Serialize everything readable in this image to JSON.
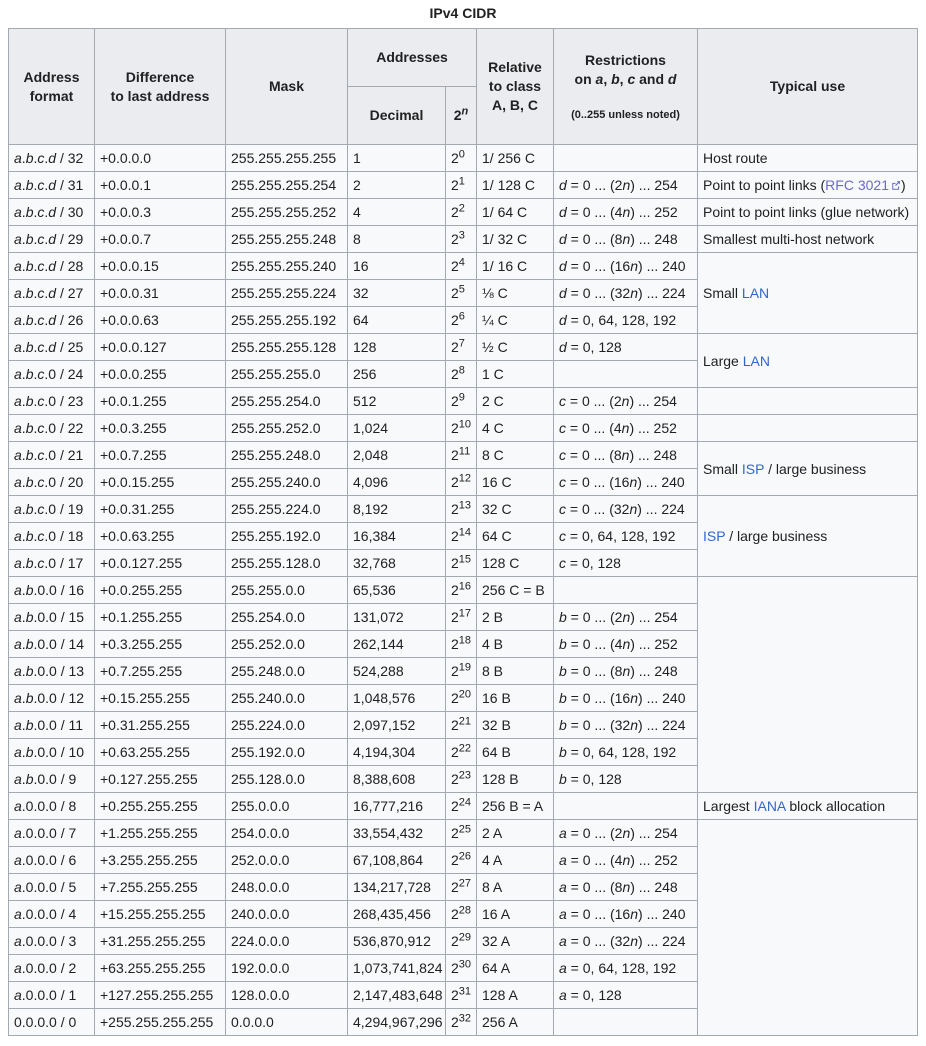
{
  "caption": "IPv4 CIDR",
  "colors": {
    "border": "#a2a9b1",
    "header_bg": "#eaecf0",
    "cell_bg": "#f8f9fa",
    "text": "#202122",
    "link": "#3366cc",
    "visited_link": "#6b6bc8"
  },
  "icons": {
    "external_link": "external-link-icon"
  },
  "header": {
    "address_format": "Address\nformat",
    "difference": "Difference\nto last address",
    "mask": "Mask",
    "addresses": "Addresses",
    "decimal": "Decimal",
    "power_base": "2",
    "power_exp": "n",
    "relative": "Relative\nto class\nA, B, C",
    "restrictions": "Restrictions\non a, b, c and d",
    "restrictions_note": "(0..255 unless noted)",
    "typical_use": "Typical use"
  },
  "table": {
    "rows": [
      {
        "fmt": "a.b.c.d / 32",
        "diff": "+0.0.0.0",
        "mask": "255.255.255.255",
        "dec": "1",
        "exp": "0",
        "rel": "1/ 256 C",
        "restr": ""
      },
      {
        "fmt": "a.b.c.d / 31",
        "diff": "+0.0.0.1",
        "mask": "255.255.255.254",
        "dec": "2",
        "exp": "1",
        "rel": "1/ 128 C",
        "restr": "d = 0 ... (2n) ... 254"
      },
      {
        "fmt": "a.b.c.d / 30",
        "diff": "+0.0.0.3",
        "mask": "255.255.255.252",
        "dec": "4",
        "exp": "2",
        "rel": "1/ 64 C",
        "restr": "d = 0 ... (4n) ... 252"
      },
      {
        "fmt": "a.b.c.d / 29",
        "diff": "+0.0.0.7",
        "mask": "255.255.255.248",
        "dec": "8",
        "exp": "3",
        "rel": "1/ 32 C",
        "restr": "d = 0 ... (8n) ... 248"
      },
      {
        "fmt": "a.b.c.d / 28",
        "diff": "+0.0.0.15",
        "mask": "255.255.255.240",
        "dec": "16",
        "exp": "4",
        "rel": "1/ 16 C",
        "restr": "d = 0 ... (16n) ... 240"
      },
      {
        "fmt": "a.b.c.d / 27",
        "diff": "+0.0.0.31",
        "mask": "255.255.255.224",
        "dec": "32",
        "exp": "5",
        "rel": "⅛ C",
        "restr": "d = 0 ... (32n) ... 224"
      },
      {
        "fmt": "a.b.c.d / 26",
        "diff": "+0.0.0.63",
        "mask": "255.255.255.192",
        "dec": "64",
        "exp": "6",
        "rel": "¼ C",
        "restr": "d = 0, 64, 128, 192"
      },
      {
        "fmt": "a.b.c.d / 25",
        "diff": "+0.0.0.127",
        "mask": "255.255.255.128",
        "dec": "128",
        "exp": "7",
        "rel": "½ C",
        "restr": "d = 0, 128"
      },
      {
        "fmt": "a.b.c.0 / 24",
        "diff": "+0.0.0.255",
        "mask": "255.255.255.0",
        "dec": "256",
        "exp": "8",
        "rel": "1 C",
        "restr": ""
      },
      {
        "fmt": "a.b.c.0 / 23",
        "diff": "+0.0.1.255",
        "mask": "255.255.254.0",
        "dec": "512",
        "exp": "9",
        "rel": "2 C",
        "restr": "c = 0 ... (2n) ... 254"
      },
      {
        "fmt": "a.b.c.0 / 22",
        "diff": "+0.0.3.255",
        "mask": "255.255.252.0",
        "dec": "1,024",
        "exp": "10",
        "rel": "4 C",
        "restr": "c = 0 ... (4n) ... 252"
      },
      {
        "fmt": "a.b.c.0 / 21",
        "diff": "+0.0.7.255",
        "mask": "255.255.248.0",
        "dec": "2,048",
        "exp": "11",
        "rel": "8 C",
        "restr": "c = 0 ... (8n) ... 248"
      },
      {
        "fmt": "a.b.c.0 / 20",
        "diff": "+0.0.15.255",
        "mask": "255.255.240.0",
        "dec": "4,096",
        "exp": "12",
        "rel": "16 C",
        "restr": "c = 0 ... (16n) ... 240"
      },
      {
        "fmt": "a.b.c.0 / 19",
        "diff": "+0.0.31.255",
        "mask": "255.255.224.0",
        "dec": "8,192",
        "exp": "13",
        "rel": "32 C",
        "restr": "c = 0 ... (32n) ... 224"
      },
      {
        "fmt": "a.b.c.0 / 18",
        "diff": "+0.0.63.255",
        "mask": "255.255.192.0",
        "dec": "16,384",
        "exp": "14",
        "rel": "64 C",
        "restr": "c = 0, 64, 128, 192"
      },
      {
        "fmt": "a.b.c.0 / 17",
        "diff": "+0.0.127.255",
        "mask": "255.255.128.0",
        "dec": "32,768",
        "exp": "15",
        "rel": "128 C",
        "restr": "c = 0, 128"
      },
      {
        "fmt": "a.b.0.0 / 16",
        "diff": "+0.0.255.255",
        "mask": "255.255.0.0",
        "dec": "65,536",
        "exp": "16",
        "rel": "256 C = B",
        "restr": ""
      },
      {
        "fmt": "a.b.0.0 / 15",
        "diff": "+0.1.255.255",
        "mask": "255.254.0.0",
        "dec": "131,072",
        "exp": "17",
        "rel": "2 B",
        "restr": "b = 0 ... (2n) ... 254"
      },
      {
        "fmt": "a.b.0.0 / 14",
        "diff": "+0.3.255.255",
        "mask": "255.252.0.0",
        "dec": "262,144",
        "exp": "18",
        "rel": "4 B",
        "restr": "b = 0 ... (4n) ... 252"
      },
      {
        "fmt": "a.b.0.0 / 13",
        "diff": "+0.7.255.255",
        "mask": "255.248.0.0",
        "dec": "524,288",
        "exp": "19",
        "rel": "8 B",
        "restr": "b = 0 ... (8n) ... 248"
      },
      {
        "fmt": "a.b.0.0 / 12",
        "diff": "+0.15.255.255",
        "mask": "255.240.0.0",
        "dec": "1,048,576",
        "exp": "20",
        "rel": "16 B",
        "restr": "b = 0 ... (16n) ... 240"
      },
      {
        "fmt": "a.b.0.0 / 11",
        "diff": "+0.31.255.255",
        "mask": "255.224.0.0",
        "dec": "2,097,152",
        "exp": "21",
        "rel": "32 B",
        "restr": "b = 0 ... (32n) ... 224"
      },
      {
        "fmt": "a.b.0.0 / 10",
        "diff": "+0.63.255.255",
        "mask": "255.192.0.0",
        "dec": "4,194,304",
        "exp": "22",
        "rel": "64 B",
        "restr": "b = 0, 64, 128, 192"
      },
      {
        "fmt": "a.b.0.0 / 9",
        "diff": "+0.127.255.255",
        "mask": "255.128.0.0",
        "dec": "8,388,608",
        "exp": "23",
        "rel": "128 B",
        "restr": "b = 0, 128"
      },
      {
        "fmt": "a.0.0.0 / 8",
        "diff": "+0.255.255.255",
        "mask": "255.0.0.0",
        "dec": "16,777,216",
        "exp": "24",
        "rel": "256 B = A",
        "restr": ""
      },
      {
        "fmt": "a.0.0.0 / 7",
        "diff": "+1.255.255.255",
        "mask": "254.0.0.0",
        "dec": "33,554,432",
        "exp": "25",
        "rel": "2 A",
        "restr": "a = 0 ... (2n) ... 254"
      },
      {
        "fmt": "a.0.0.0 / 6",
        "diff": "+3.255.255.255",
        "mask": "252.0.0.0",
        "dec": "67,108,864",
        "exp": "26",
        "rel": "4 A",
        "restr": "a = 0 ... (4n) ... 252"
      },
      {
        "fmt": "a.0.0.0 / 5",
        "diff": "+7.255.255.255",
        "mask": "248.0.0.0",
        "dec": "134,217,728",
        "exp": "27",
        "rel": "8 A",
        "restr": "a = 0 ... (8n) ... 248"
      },
      {
        "fmt": "a.0.0.0 / 4",
        "diff": "+15.255.255.255",
        "mask": "240.0.0.0",
        "dec": "268,435,456",
        "exp": "28",
        "rel": "16 A",
        "restr": "a = 0 ... (16n) ... 240"
      },
      {
        "fmt": "a.0.0.0 / 3",
        "diff": "+31.255.255.255",
        "mask": "224.0.0.0",
        "dec": "536,870,912",
        "exp": "29",
        "rel": "32 A",
        "restr": "a = 0 ... (32n) ... 224"
      },
      {
        "fmt": "a.0.0.0 / 2",
        "diff": "+63.255.255.255",
        "mask": "192.0.0.0",
        "dec": "1,073,741,824",
        "exp": "30",
        "rel": "64 A",
        "restr": "a = 0, 64, 128, 192"
      },
      {
        "fmt": "a.0.0.0 / 1",
        "diff": "+127.255.255.255",
        "mask": "128.0.0.0",
        "dec": "2,147,483,648",
        "exp": "31",
        "rel": "128 A",
        "restr": "a = 0, 128"
      },
      {
        "fmt": "0.0.0.0 / 0",
        "diff": "+255.255.255.255",
        "mask": "0.0.0.0",
        "dec": "4,294,967,296",
        "exp": "32",
        "rel": "256 A",
        "restr": ""
      }
    ],
    "typical_use": [
      {
        "rows": 1,
        "segments": [
          {
            "t": "Host route"
          }
        ]
      },
      {
        "rows": 1,
        "segments": [
          {
            "t": "Point to point links ("
          },
          {
            "t": "RFC 3021",
            "link": true,
            "visited": true,
            "external": true
          },
          {
            "t": ")"
          }
        ]
      },
      {
        "rows": 1,
        "segments": [
          {
            "t": "Point to point links (glue network)"
          }
        ]
      },
      {
        "rows": 1,
        "segments": [
          {
            "t": "Smallest multi-host network"
          }
        ]
      },
      {
        "rows": 3,
        "segments": [
          {
            "t": "Small "
          },
          {
            "t": "LAN",
            "link": true
          }
        ]
      },
      {
        "rows": 2,
        "segments": [
          {
            "t": "Large "
          },
          {
            "t": "LAN",
            "link": true
          }
        ]
      },
      {
        "rows": 1,
        "segments": []
      },
      {
        "rows": 1,
        "segments": []
      },
      {
        "rows": 2,
        "segments": [
          {
            "t": "Small "
          },
          {
            "t": "ISP",
            "link": true
          },
          {
            "t": " / large business"
          }
        ]
      },
      {
        "rows": 3,
        "segments": [
          {
            "t": "ISP",
            "link": true
          },
          {
            "t": " / large business"
          }
        ]
      },
      {
        "rows": 8,
        "segments": []
      },
      {
        "rows": 1,
        "segments": [
          {
            "t": "Largest "
          },
          {
            "t": "IANA",
            "link": true
          },
          {
            "t": " block allocation"
          }
        ]
      },
      {
        "rows": 8,
        "segments": []
      }
    ]
  }
}
